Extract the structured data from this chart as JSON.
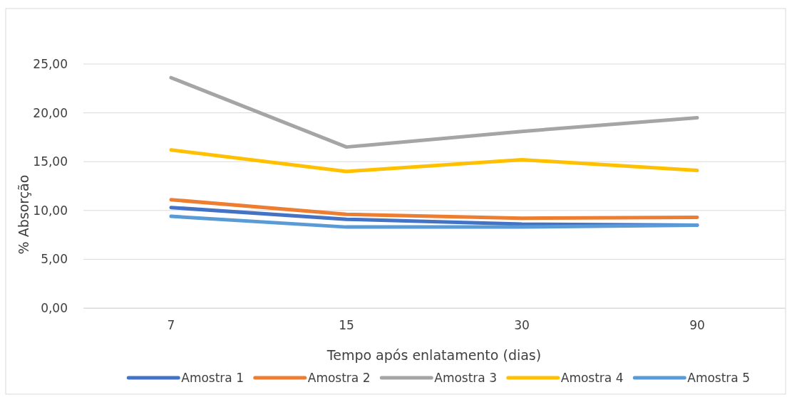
{
  "chart_data": {
    "type": "line",
    "xlabel": "Tempo após enlatamento (dias)",
    "ylabel": "% Absorção",
    "categories": [
      "7",
      "15",
      "30",
      "90"
    ],
    "ylim": [
      0,
      25
    ],
    "yticks": [
      {
        "value": 0,
        "label": "0,00"
      },
      {
        "value": 5,
        "label": "5,00"
      },
      {
        "value": 10,
        "label": "10,00"
      },
      {
        "value": 15,
        "label": "15,00"
      },
      {
        "value": 20,
        "label": "20,00"
      },
      {
        "value": 25,
        "label": "25,00"
      }
    ],
    "grid": "y",
    "legend": "bottom",
    "marker": "none",
    "line_style": "solid",
    "series": [
      {
        "name": "Amostra 1",
        "color": "#4472c4",
        "values": [
          10.3,
          9.1,
          8.6,
          8.5
        ]
      },
      {
        "name": "Amostra 2",
        "color": "#ed7d31",
        "values": [
          11.1,
          9.6,
          9.2,
          9.3
        ]
      },
      {
        "name": "Amostra 3",
        "color": "#a5a5a5",
        "values": [
          23.6,
          16.5,
          18.1,
          19.5
        ]
      },
      {
        "name": "Amostra 4",
        "color": "#ffc000",
        "values": [
          16.2,
          14.0,
          15.2,
          14.1
        ]
      },
      {
        "name": "Amostra 5",
        "color": "#5b9bd5",
        "values": [
          9.4,
          8.3,
          8.3,
          8.5
        ]
      }
    ]
  }
}
